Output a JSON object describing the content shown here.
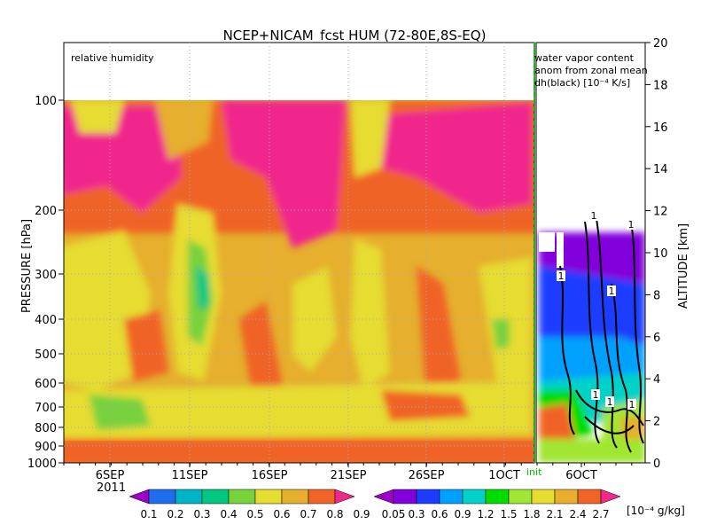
{
  "chart_data": {
    "type": "heatmap",
    "title": "NCEP+NICAM_fcst HUM (72-80E,8S-EQ)",
    "ylabel_left": "PRESSURE [hPa]",
    "ylabel_right": "ALTITUDE [km]",
    "left_panel_label": "relative humidity",
    "right_panel_label": [
      "water vapor content",
      "anom from zonal mean",
      "dh(black) [10⁻⁴ K/s]"
    ],
    "pressure_ticks": [
      "100",
      "200",
      "300",
      "400",
      "500",
      "600",
      "700",
      "800",
      "900",
      "1000"
    ],
    "altitude_ticks": [
      "0",
      "2",
      "4",
      "6",
      "8",
      "10",
      "12",
      "14",
      "16",
      "18",
      "20"
    ],
    "x_ticks": [
      "6SEP",
      "11SEP",
      "16SEP",
      "21SEP",
      "26SEP",
      "1OCT",
      "6OCT"
    ],
    "year_label": "2011",
    "init_label": "init",
    "contour_labels": [
      "1",
      "1",
      "1",
      "1",
      "1",
      "1",
      "1"
    ],
    "colorbar_rh": {
      "levels": [
        "0.1",
        "0.2",
        "0.3",
        "0.4",
        "0.5",
        "0.6",
        "0.7",
        "0.8",
        "0.9"
      ],
      "colors": [
        "#a000c8",
        "#1e6eeb",
        "#00b4c8",
        "#00c882",
        "#78d23c",
        "#e6dc32",
        "#e6af2d",
        "#f06428",
        "#f0288c"
      ]
    },
    "colorbar_wv": {
      "levels": [
        "0.05",
        "0.3",
        "0.6",
        "0.9",
        "1.2",
        "1.5",
        "1.8",
        "2.1",
        "2.4",
        "2.7"
      ],
      "unit": "[10⁻⁴ g/kg]",
      "colors": [
        "#a000c8",
        "#8200dc",
        "#1e3cff",
        "#00a0ff",
        "#00d2c8",
        "#00dc00",
        "#a0e632",
        "#e6dc32",
        "#e6af2d",
        "#f06428",
        "#f0288c"
      ]
    }
  }
}
